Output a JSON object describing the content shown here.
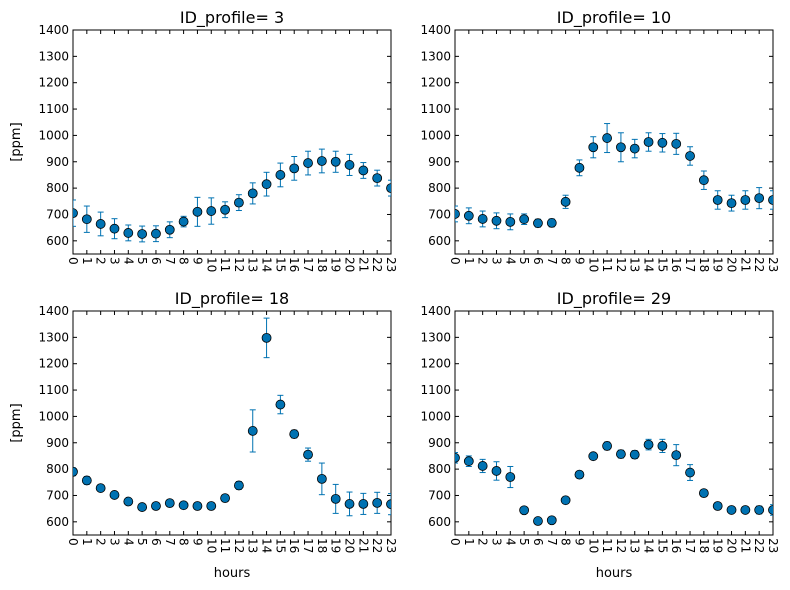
{
  "colors": {
    "marker": "#0072B2",
    "errorbar": "#0072B2",
    "axis": "#000000",
    "background": "#ffffff"
  },
  "chart_data": [
    {
      "type": "scatter",
      "title": "ID_profile= 3",
      "xlabel": "",
      "ylabel": "[ppm]",
      "xlim": [
        0,
        23
      ],
      "ylim": [
        550,
        1400
      ],
      "xticks": [
        "0",
        "1",
        "2",
        "3",
        "4",
        "5",
        "6",
        "7",
        "8",
        "9",
        "10",
        "11",
        "12",
        "13",
        "14",
        "15",
        "16",
        "17",
        "18",
        "19",
        "20",
        "21",
        "22",
        "23"
      ],
      "yticks": [
        "600",
        "700",
        "800",
        "900",
        "1000",
        "1100",
        "1200",
        "1300",
        "1400"
      ],
      "x": [
        0,
        1,
        2,
        3,
        4,
        5,
        6,
        7,
        8,
        9,
        10,
        11,
        12,
        13,
        14,
        15,
        16,
        17,
        18,
        19,
        20,
        21,
        22,
        23
      ],
      "y": [
        705,
        682,
        664,
        646,
        630,
        626,
        627,
        642,
        673,
        710,
        713,
        718,
        745,
        780,
        815,
        850,
        875,
        895,
        903,
        900,
        888,
        867,
        838,
        800
      ],
      "err": [
        50,
        50,
        45,
        38,
        30,
        30,
        30,
        30,
        20,
        55,
        50,
        30,
        30,
        40,
        45,
        45,
        45,
        45,
        45,
        40,
        40,
        30,
        30,
        30
      ]
    },
    {
      "type": "scatter",
      "title": "ID_profile= 10",
      "xlabel": "",
      "ylabel": "",
      "xlim": [
        0,
        23
      ],
      "ylim": [
        550,
        1400
      ],
      "xticks": [
        "0",
        "1",
        "2",
        "3",
        "4",
        "5",
        "6",
        "7",
        "8",
        "9",
        "10",
        "11",
        "12",
        "13",
        "14",
        "15",
        "16",
        "17",
        "18",
        "19",
        "20",
        "21",
        "22",
        "23"
      ],
      "yticks": [
        "600",
        "700",
        "800",
        "900",
        "1000",
        "1100",
        "1200",
        "1300",
        "1400"
      ],
      "x": [
        0,
        1,
        2,
        3,
        4,
        5,
        6,
        7,
        8,
        9,
        10,
        11,
        12,
        13,
        14,
        15,
        16,
        17,
        18,
        19,
        20,
        21,
        22,
        23
      ],
      "y": [
        702,
        695,
        683,
        676,
        672,
        682,
        667,
        668,
        748,
        877,
        955,
        990,
        955,
        950,
        975,
        972,
        968,
        922,
        830,
        755,
        743,
        755,
        762,
        755
      ],
      "err": [
        30,
        30,
        30,
        30,
        30,
        20,
        15,
        15,
        25,
        30,
        40,
        55,
        55,
        35,
        35,
        35,
        40,
        35,
        35,
        35,
        30,
        35,
        40,
        35
      ]
    },
    {
      "type": "scatter",
      "title": "ID_profile= 18",
      "xlabel": "hours",
      "ylabel": "[ppm]",
      "xlim": [
        0,
        23
      ],
      "ylim": [
        550,
        1400
      ],
      "xticks": [
        "0",
        "1",
        "2",
        "3",
        "4",
        "5",
        "6",
        "7",
        "8",
        "9",
        "10",
        "11",
        "12",
        "13",
        "14",
        "15",
        "16",
        "17",
        "18",
        "19",
        "20",
        "21",
        "22",
        "23"
      ],
      "yticks": [
        "600",
        "700",
        "800",
        "900",
        "1000",
        "1100",
        "1200",
        "1300",
        "1400"
      ],
      "x": [
        0,
        1,
        2,
        3,
        4,
        5,
        6,
        7,
        8,
        9,
        10,
        11,
        12,
        13,
        14,
        15,
        16,
        17,
        18,
        19,
        20,
        21,
        22,
        23
      ],
      "y": [
        790,
        757,
        728,
        702,
        677,
        656,
        660,
        671,
        663,
        660,
        660,
        690,
        738,
        945,
        1298,
        1045,
        933,
        855,
        763,
        687,
        668,
        668,
        672,
        667
      ],
      "err": [
        15,
        15,
        10,
        10,
        10,
        10,
        10,
        10,
        10,
        10,
        10,
        10,
        15,
        80,
        75,
        35,
        15,
        25,
        60,
        55,
        45,
        40,
        40,
        40
      ]
    },
    {
      "type": "scatter",
      "title": "ID_profile= 29",
      "xlabel": "hours",
      "ylabel": "",
      "xlim": [
        0,
        23
      ],
      "ylim": [
        550,
        1400
      ],
      "xticks": [
        "0",
        "1",
        "2",
        "3",
        "4",
        "5",
        "6",
        "7",
        "8",
        "9",
        "10",
        "11",
        "12",
        "13",
        "14",
        "15",
        "16",
        "17",
        "18",
        "19",
        "20",
        "21",
        "22",
        "23"
      ],
      "yticks": [
        "600",
        "700",
        "800",
        "900",
        "1000",
        "1100",
        "1200",
        "1300",
        "1400"
      ],
      "x": [
        0,
        1,
        2,
        3,
        4,
        5,
        6,
        7,
        8,
        9,
        10,
        11,
        12,
        13,
        14,
        15,
        16,
        17,
        18,
        19,
        20,
        21,
        22,
        23
      ],
      "y": [
        843,
        830,
        812,
        793,
        770,
        644,
        603,
        606,
        682,
        779,
        849,
        888,
        857,
        855,
        893,
        888,
        853,
        787,
        709,
        660,
        645,
        645,
        645,
        645
      ],
      "err": [
        20,
        20,
        25,
        35,
        40,
        10,
        10,
        10,
        10,
        10,
        10,
        15,
        15,
        15,
        20,
        25,
        40,
        30,
        10,
        10,
        10,
        10,
        15,
        20
      ]
    }
  ]
}
